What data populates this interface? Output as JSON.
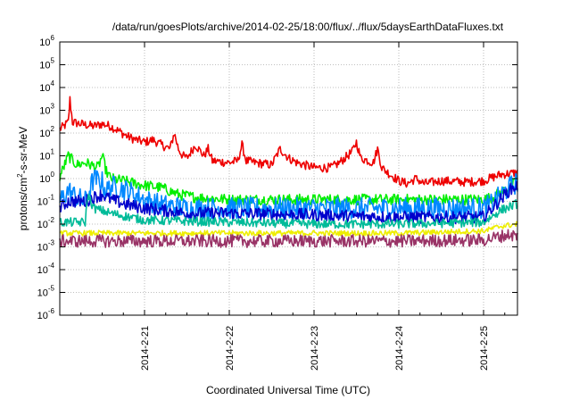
{
  "chart_data": {
    "type": "line",
    "title": "/data/run/goesPlots/archive/2014-02-25/18:00/flux/../flux/5daysEarthDataFluxes.txt",
    "xlabel": "Coordinated Universal Time (UTC)",
    "ylabel_main": "protons/cm",
    "ylabel_sup": "2",
    "ylabel_tail": "-s-sr-MeV",
    "y_scale": "log",
    "ylim": [
      1e-06,
      1000000.0
    ],
    "xlim": [
      0,
      5.4
    ],
    "grid": true,
    "x_ticks": [
      {
        "pos": 1,
        "label": "2014-2-21"
      },
      {
        "pos": 2,
        "label": "2014-2-22"
      },
      {
        "pos": 3,
        "label": "2014-2-23"
      },
      {
        "pos": 4,
        "label": "2014-2-24"
      },
      {
        "pos": 5,
        "label": "2014-2-25"
      }
    ],
    "y_ticks": [
      {
        "exp": "-6"
      },
      {
        "exp": "-5"
      },
      {
        "exp": "-4"
      },
      {
        "exp": "-3"
      },
      {
        "exp": "-2"
      },
      {
        "exp": "-1"
      },
      {
        "exp": "0"
      },
      {
        "exp": "1"
      },
      {
        "exp": "2"
      },
      {
        "exp": "3"
      },
      {
        "exp": "4"
      },
      {
        "exp": "5"
      },
      {
        "exp": "6"
      }
    ],
    "y_tick_base": "10",
    "series": [
      {
        "color": "#ee0000",
        "noise": 0.05,
        "x": [
          0,
          0.05,
          0.1,
          0.12,
          0.15,
          0.25,
          0.4,
          0.5,
          0.6,
          0.7,
          0.8,
          0.9,
          1.0,
          1.1,
          1.2,
          1.3,
          1.35,
          1.4,
          1.45,
          1.5,
          1.6,
          1.7,
          1.75,
          1.8,
          2.0,
          2.1,
          2.15,
          2.2,
          2.3,
          2.5,
          2.6,
          2.7,
          2.8,
          3.0,
          3.2,
          3.3,
          3.45,
          3.5,
          3.55,
          3.7,
          3.75,
          3.8,
          3.9,
          4.0,
          4.1,
          4.2,
          4.3,
          4.5,
          4.8,
          5.0,
          5.2,
          5.4
        ],
        "y": [
          150,
          200,
          300,
          3000,
          300,
          250,
          200,
          250,
          200,
          120,
          70,
          50,
          40,
          50,
          30,
          20,
          100,
          20,
          10,
          8,
          30,
          10,
          20,
          6,
          5,
          6,
          30,
          6,
          5,
          4,
          20,
          8,
          5,
          3,
          3,
          5,
          15,
          40,
          8,
          5,
          20,
          3,
          1.5,
          0.8,
          0.6,
          1,
          0.6,
          0.8,
          0.7,
          0.8,
          1.5,
          1.8
        ]
      },
      {
        "color": "#00ee00",
        "noise": 0.06,
        "x": [
          0,
          0.1,
          0.2,
          0.3,
          0.45,
          0.5,
          0.55,
          0.6,
          0.75,
          1.0,
          1.2,
          1.4,
          1.6,
          2.0,
          3.0,
          3.5,
          4.0,
          4.5,
          5.0,
          5.1,
          5.3,
          5.4
        ],
        "y": [
          1.2,
          10,
          4,
          5,
          3,
          10,
          2,
          1,
          0.8,
          0.5,
          0.4,
          0.2,
          0.15,
          0.12,
          0.12,
          0.12,
          0.12,
          0.12,
          0.12,
          0.15,
          0.4,
          0.8
        ]
      },
      {
        "color": "#0088ff",
        "noise": 0.12,
        "x": [
          0,
          0.1,
          0.2,
          0.3,
          0.4,
          0.5,
          0.55,
          0.6,
          0.8,
          1.0,
          1.2,
          1.5,
          2.0,
          3.0,
          4.0,
          4.5,
          5.0,
          5.1,
          5.3,
          5.4
        ],
        "y": [
          0.1,
          0.3,
          0.15,
          0.1,
          1.0,
          0.7,
          0.25,
          0.5,
          0.3,
          0.12,
          0.07,
          0.05,
          0.05,
          0.05,
          0.05,
          0.05,
          0.05,
          0.08,
          0.4,
          0.7
        ]
      },
      {
        "color": "#0000cc",
        "noise": 0.07,
        "x": [
          0,
          0.1,
          0.3,
          0.4,
          0.5,
          0.6,
          0.8,
          1.0,
          1.5,
          2.0,
          3.0,
          4.0,
          5.0,
          5.1,
          5.3,
          5.4
        ],
        "y": [
          0.05,
          0.1,
          0.1,
          0.15,
          0.2,
          0.12,
          0.07,
          0.05,
          0.03,
          0.03,
          0.025,
          0.02,
          0.02,
          0.05,
          0.3,
          0.5
        ]
      },
      {
        "color": "#00bb99",
        "noise": 0.05,
        "x": [
          0,
          0.3,
          0.33,
          0.4,
          0.6,
          1.0,
          2.0,
          3.0,
          4.0,
          5.0,
          5.2,
          5.4
        ],
        "y": [
          0.012,
          0.012,
          0.2,
          0.05,
          0.03,
          0.015,
          0.012,
          0.01,
          0.01,
          0.012,
          0.04,
          0.08
        ]
      },
      {
        "color": "#eeee00",
        "noise": 0.03,
        "x": [
          0,
          1.0,
          2.0,
          3.0,
          4.0,
          5.0,
          5.2,
          5.4
        ],
        "y": [
          0.004,
          0.004,
          0.004,
          0.004,
          0.004,
          0.005,
          0.008,
          0.01
        ]
      },
      {
        "color": "#993366",
        "noise": 0.07,
        "x": [
          0,
          1.0,
          2.0,
          3.0,
          4.0,
          5.0,
          5.3,
          5.4
        ],
        "y": [
          0.0018,
          0.0018,
          0.0018,
          0.0018,
          0.0018,
          0.002,
          0.0035,
          0.003
        ]
      }
    ]
  }
}
